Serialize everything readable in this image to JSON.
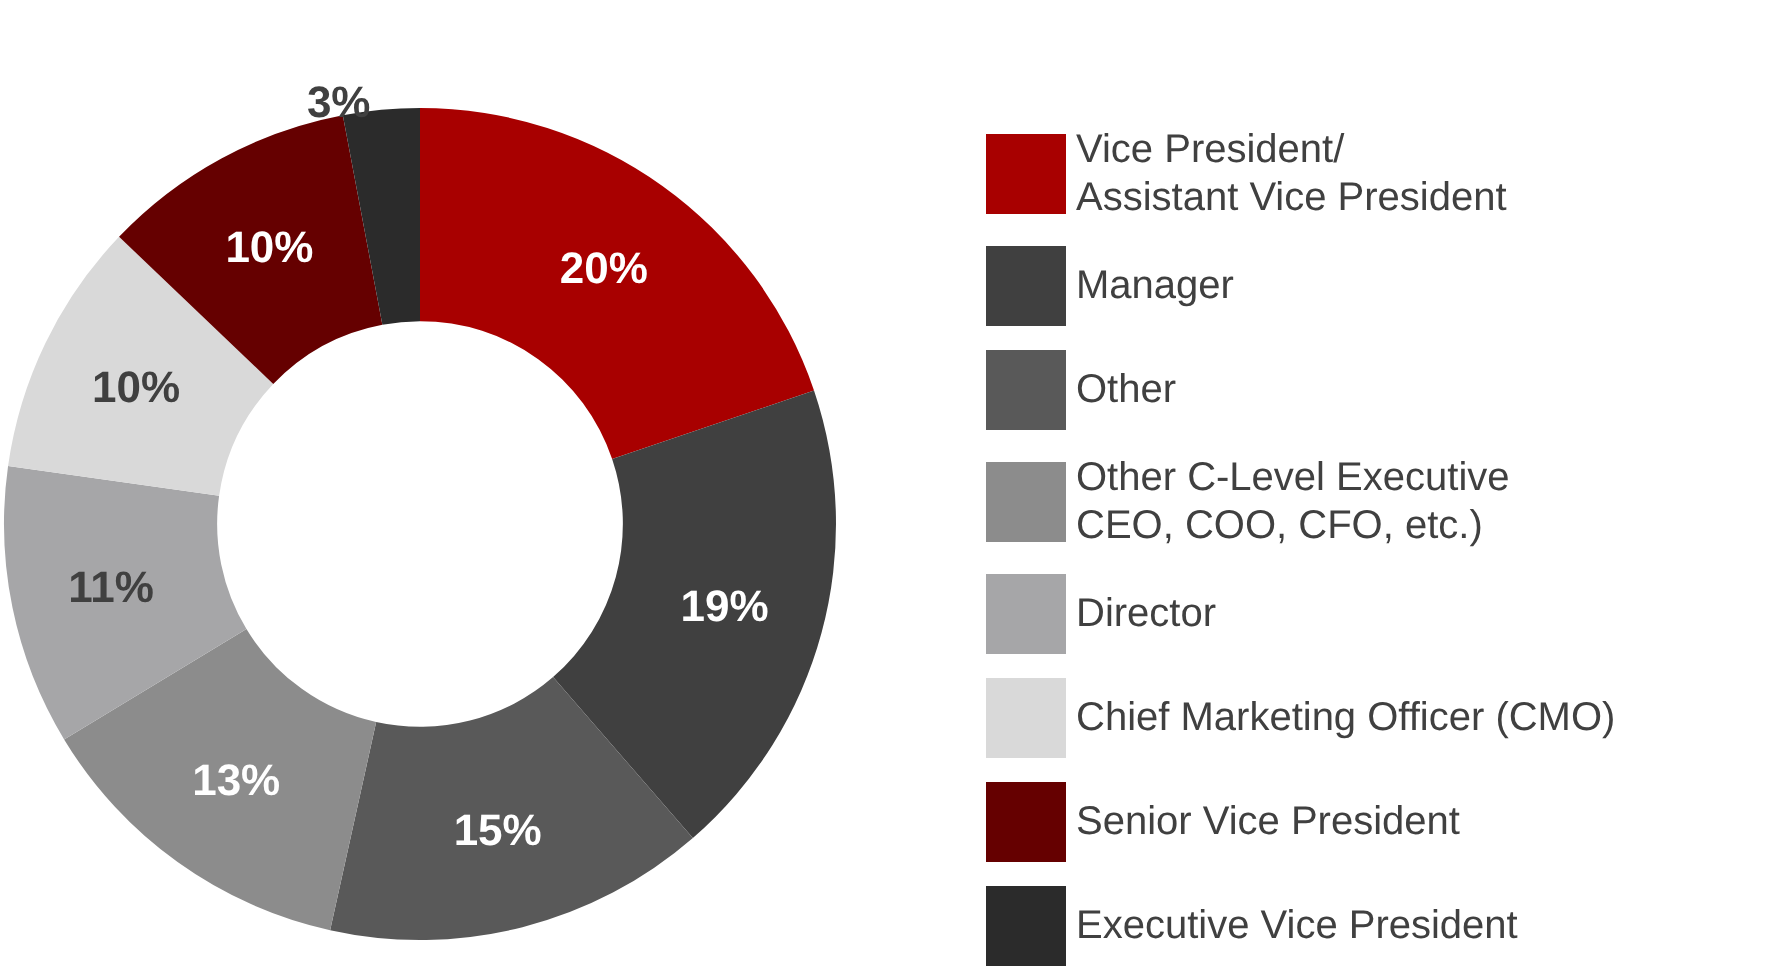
{
  "chart_data": {
    "type": "donut",
    "categories": [
      "Vice President/\nAssistant Vice President",
      "Manager",
      "Other",
      "Other C-Level Executive\nCEO, COO, CFO, etc.)",
      "Director",
      "Chief Marketing Officer (CMO)",
      "Senior Vice President",
      "Executive Vice President"
    ],
    "values": [
      20,
      19,
      15,
      13,
      11,
      10,
      10,
      3
    ],
    "colors": [
      "#a80000",
      "#404040",
      "#595959",
      "#8c8c8c",
      "#a6a6a8",
      "#d9d9d9",
      "#650000",
      "#2b2b2b"
    ],
    "value_labels": [
      "20%",
      "19%",
      "15%",
      "13%",
      "11%",
      "10%",
      "10%",
      "3%"
    ],
    "legend": "right"
  }
}
